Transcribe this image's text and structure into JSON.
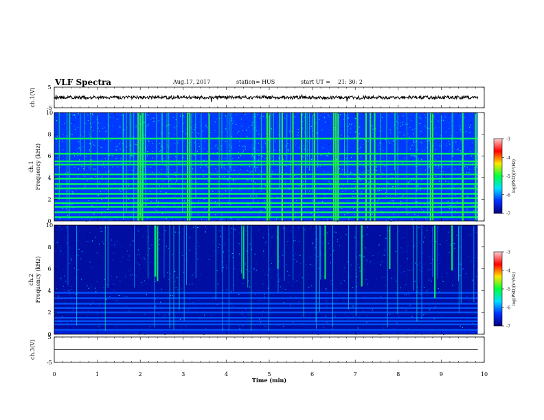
{
  "header": {
    "title": "VLF Spectra",
    "date": "Aug.17, 2017",
    "station": "station= HUS",
    "start_label": "start  UT =",
    "start_time": "21: 30: 2"
  },
  "colorbar": {
    "label": "log(PSD)(V²/Hz)",
    "ticks": [
      "-3",
      "-4",
      "-5",
      "-6",
      "-7"
    ],
    "colors": [
      "#ffd0d0",
      "#ff0000",
      "#ffe800",
      "#00ff40",
      "#00e0ff",
      "#0030ff",
      "#00007a"
    ]
  },
  "chart_data": [
    {
      "type": "line",
      "panel": "ch1-waveform",
      "ylabel": "ch.1(V)",
      "ylim": [
        -5,
        5
      ],
      "yticks": [
        "5",
        "-5"
      ],
      "trace_level": 0,
      "color": "#000000"
    },
    {
      "type": "heatmap",
      "panel": "ch1-spectrogram",
      "ylabel": "ch.1\nFrequency (kHz)",
      "ylim": [
        0,
        10
      ],
      "yticks": [
        "0",
        "2",
        "4",
        "6",
        "8",
        "10"
      ],
      "zlabel": "log(PSD)(V²/Hz)",
      "zlim": [
        -7,
        -3
      ],
      "background_level": -6.3,
      "line_bands_khz": [
        0.35,
        0.8,
        1.3,
        1.65,
        2.1,
        2.5,
        3.0,
        3.4,
        3.9,
        4.3,
        5.2,
        5.5,
        6.2,
        7.6
      ],
      "bright_bursts_min": [
        1.95,
        2.0,
        2.05,
        3.1,
        3.15,
        3.6,
        4.95,
        5.0,
        5.3,
        5.55,
        5.75,
        6.05,
        6.5,
        6.55,
        6.6,
        7.05,
        7.25,
        7.35,
        7.45,
        8.75,
        8.8,
        9.5,
        9.8
      ]
    },
    {
      "type": "heatmap",
      "panel": "ch2-spectrogram",
      "ylabel": "ch.2\nFrequency (kHz)",
      "ylim": [
        0,
        10
      ],
      "yticks": [
        "0",
        "2",
        "4",
        "6",
        "8",
        "10"
      ],
      "zlabel": "log(PSD)(V²/Hz)",
      "zlim": [
        -7,
        -3
      ],
      "background_level": -6.8,
      "line_bands_khz": [
        0.4,
        0.9,
        1.2,
        1.5,
        2.0,
        2.4,
        2.8,
        3.3,
        3.8
      ],
      "bright_bursts_min": [
        2.35,
        2.4,
        4.4,
        5.2,
        6.3,
        7.15,
        7.8,
        8.85,
        9.25
      ]
    },
    {
      "type": "line",
      "panel": "ch3-waveform",
      "ylabel": "ch.3(V)",
      "ylim": [
        -5,
        5
      ],
      "yticks": [
        "5",
        "-5"
      ],
      "trace_level": 0,
      "color": "#000000"
    }
  ],
  "xaxis": {
    "label": "Time  (min)",
    "range": [
      0,
      10
    ],
    "ticks": [
      "0",
      "1",
      "2",
      "3",
      "4",
      "5",
      "6",
      "7",
      "8",
      "9",
      "10"
    ],
    "data_end": 9.85
  }
}
